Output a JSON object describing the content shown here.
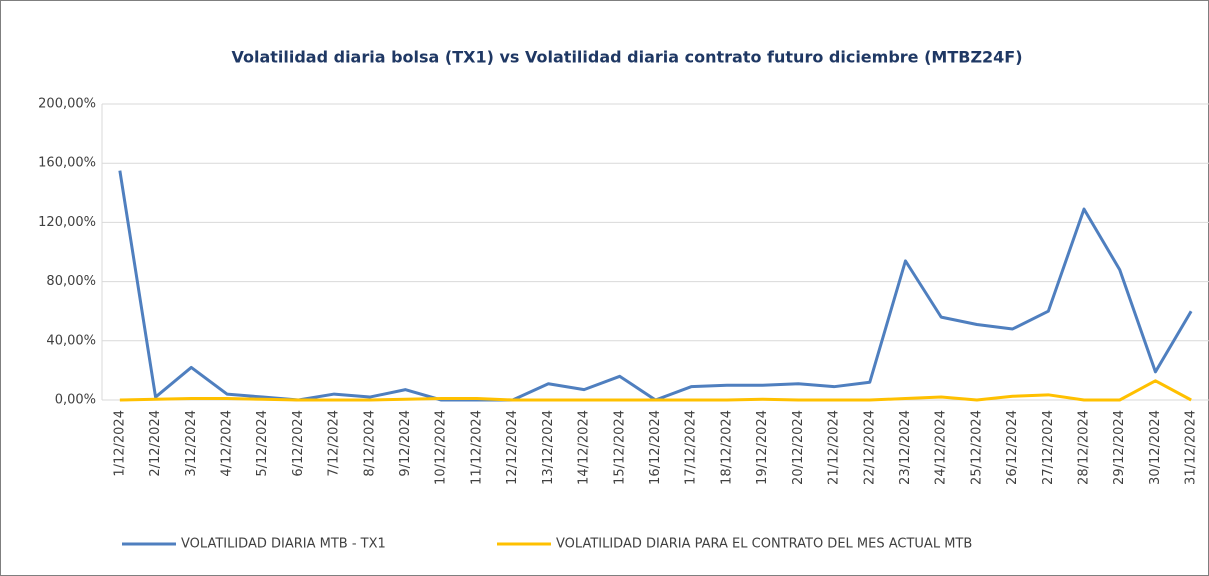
{
  "chart_data": {
    "type": "line",
    "title": "Volatilidad diaria bolsa (TX1) vs Volatilidad diaria contrato futuro diciembre (MTBZ24F)",
    "categories": [
      "1/12/2024",
      "2/12/2024",
      "3/12/2024",
      "4/12/2024",
      "5/12/2024",
      "6/12/2024",
      "7/12/2024",
      "8/12/2024",
      "9/12/2024",
      "10/12/2024",
      "11/12/2024",
      "12/12/2024",
      "13/12/2024",
      "14/12/2024",
      "15/12/2024",
      "16/12/2024",
      "17/12/2024",
      "18/12/2024",
      "19/12/2024",
      "20/12/2024",
      "21/12/2024",
      "22/12/2024",
      "23/12/2024",
      "24/12/2024",
      "25/12/2024",
      "26/12/2024",
      "27/12/2024",
      "28/12/2024",
      "29/12/2024",
      "30/12/2024",
      "31/12/2024"
    ],
    "series": [
      {
        "name": "VOLATILIDAD DIARIA MTB - TX1",
        "color": "#4f7fbf",
        "values": [
          155,
          2,
          22,
          4,
          2,
          0,
          4,
          2,
          7,
          0,
          0,
          0,
          11,
          7,
          16,
          0,
          9,
          10,
          10,
          11,
          9,
          12,
          94,
          56,
          51,
          48,
          60,
          129,
          88,
          19,
          60
        ]
      },
      {
        "name": "VOLATILIDAD DIARIA PARA EL CONTRATO DEL MES ACTUAL MTB",
        "color": "#ffc000",
        "values": [
          0,
          0.5,
          1,
          1,
          0.5,
          0,
          0,
          0,
          0.5,
          1,
          1,
          0,
          0,
          0,
          0,
          0,
          0,
          0,
          0.5,
          0,
          0,
          0,
          1,
          2,
          0,
          2.5,
          3.5,
          0,
          0,
          13,
          0
        ]
      }
    ],
    "ylim": [
      0,
      200
    ],
    "yticks": [
      {
        "value": 0,
        "label": "0,00%"
      },
      {
        "value": 40,
        "label": "40,00%"
      },
      {
        "value": 80,
        "label": "80,00%"
      },
      {
        "value": 120,
        "label": "120,00%"
      },
      {
        "value": 160,
        "label": "160,00%"
      },
      {
        "value": 200,
        "label": "200,00%"
      }
    ],
    "grid": true,
    "legend": "bottom"
  }
}
